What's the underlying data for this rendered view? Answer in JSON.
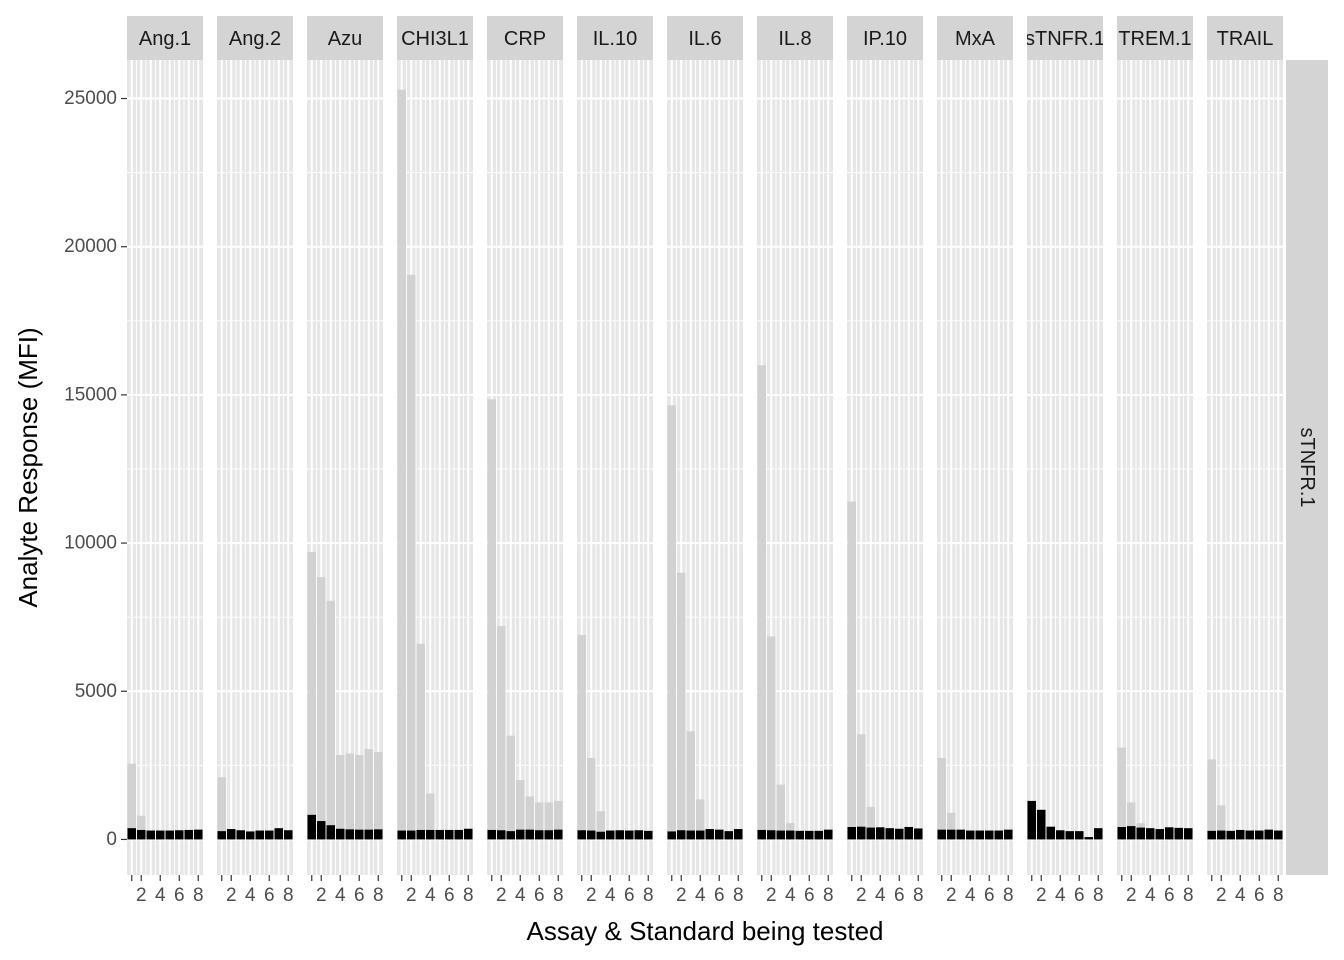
{
  "chart_data": {
    "type": "bar",
    "layout": "faceted",
    "xlabel": "Assay & Standard being tested",
    "ylabel": "Analyte Response (MFI)",
    "row_strip": "sTNFR.1",
    "ylim": [
      -1200,
      26300
    ],
    "y_ticks": [
      0,
      5000,
      10000,
      15000,
      20000,
      25000
    ],
    "x_ticks": [
      2,
      4,
      6,
      8
    ],
    "x_tick_labels": [
      "2",
      "4",
      "6",
      "8"
    ],
    "standards": [
      1,
      2,
      3,
      4,
      5,
      6,
      7,
      8
    ],
    "grid": true,
    "legend": "none",
    "colors": {
      "panel_bg": "#e6e6e6",
      "grid": "#ffffff",
      "strip_bg": "#d4d4d4",
      "target_bar": "#000000",
      "other_bar": "#d0d0d0"
    },
    "panels": [
      {
        "name": "Ang.1",
        "grey": [
          2550,
          800,
          0,
          0,
          0,
          0,
          0,
          0
        ],
        "black": [
          380,
          320,
          300,
          300,
          300,
          310,
          320,
          330
        ]
      },
      {
        "name": "Ang.2",
        "grey": [
          2100,
          0,
          0,
          0,
          0,
          0,
          0,
          0
        ],
        "black": [
          280,
          350,
          310,
          270,
          300,
          300,
          380,
          310
        ]
      },
      {
        "name": "Azu",
        "grey": [
          9700,
          8850,
          8050,
          2850,
          2900,
          2850,
          3050,
          2950
        ],
        "black": [
          830,
          620,
          480,
          360,
          340,
          330,
          330,
          340
        ]
      },
      {
        "name": "CHI3L1",
        "grey": [
          25300,
          19050,
          6600,
          1550,
          0,
          0,
          0,
          0
        ],
        "black": [
          300,
          300,
          320,
          320,
          320,
          320,
          320,
          360
        ]
      },
      {
        "name": "CRP",
        "grey": [
          14850,
          7200,
          3500,
          2000,
          1450,
          1250,
          1250,
          1300
        ],
        "black": [
          320,
          310,
          280,
          330,
          330,
          310,
          310,
          330
        ]
      },
      {
        "name": "IL.10",
        "grey": [
          6900,
          2750,
          950,
          0,
          0,
          0,
          0,
          0
        ],
        "black": [
          310,
          300,
          260,
          300,
          310,
          300,
          310,
          290
        ]
      },
      {
        "name": "IL.6",
        "grey": [
          14650,
          9000,
          3650,
          1350,
          0,
          0,
          0,
          0
        ],
        "black": [
          270,
          310,
          300,
          300,
          350,
          330,
          280,
          350
        ]
      },
      {
        "name": "IL.8",
        "grey": [
          16000,
          6850,
          1850,
          550,
          0,
          0,
          0,
          0
        ],
        "black": [
          320,
          310,
          300,
          300,
          290,
          290,
          290,
          330
        ]
      },
      {
        "name": "IP.10",
        "grey": [
          11400,
          3550,
          1100,
          0,
          0,
          0,
          0,
          0
        ],
        "black": [
          420,
          430,
          400,
          410,
          380,
          360,
          420,
          370
        ]
      },
      {
        "name": "MxA",
        "grey": [
          2750,
          900,
          0,
          0,
          0,
          0,
          0,
          0
        ],
        "black": [
          330,
          330,
          330,
          300,
          300,
          300,
          300,
          330
        ]
      },
      {
        "name": "sTNFR.1",
        "grey": [
          0,
          0,
          0,
          0,
          0,
          0,
          0,
          0
        ],
        "black": [
          1300,
          1000,
          430,
          310,
          280,
          280,
          80,
          380
        ]
      },
      {
        "name": "TREM.1",
        "grey": [
          3100,
          1250,
          550,
          0,
          0,
          0,
          0,
          0
        ],
        "black": [
          420,
          450,
          400,
          380,
          350,
          410,
          390,
          380
        ]
      },
      {
        "name": "TRAIL",
        "grey": [
          2700,
          1150,
          0,
          0,
          0,
          0,
          0,
          0
        ],
        "black": [
          290,
          300,
          290,
          320,
          300,
          300,
          330,
          300
        ]
      }
    ]
  }
}
